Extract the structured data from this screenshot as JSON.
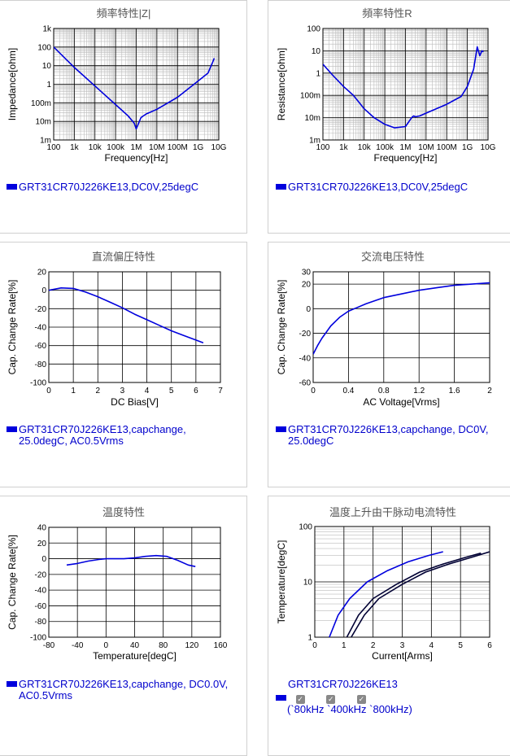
{
  "panels": {
    "imp": {
      "title": "頻率特性|Z|",
      "legend": "GRT31CR70J226KE13,DC0V,25degC"
    },
    "res": {
      "title": "頻率特性R",
      "legend": "GRT31CR70J226KE13,DC0V,25degC"
    },
    "dc": {
      "title": "直流偏圧特性",
      "legend_line1": "GRT31CR70J226KE13,capchange,",
      "legend_line2": "25.0degC, AC0.5Vrms"
    },
    "ac": {
      "title": "交流电压特性",
      "legend_line1": "GRT31CR70J226KE13,capchange, DC0V,",
      "legend_line2": "25.0degC"
    },
    "temp": {
      "title": "温度特性",
      "legend_line1": "GRT31CR70J226KE13,capchange, DC0.0V,",
      "legend_line2": "AC0.5Vrms"
    },
    "rise": {
      "title": "温度上升由干脉动电流特性",
      "legend_name": "GRT31CR70J226KE13",
      "check_mark": "✓",
      "check_labels": "(`80kHz `400kHz `800kHz)"
    }
  },
  "colors": {
    "series": "#0000dd",
    "series_dark": "#000033",
    "grid": "#000000",
    "plot_bg": "#ffffff"
  },
  "chart_data": [
    {
      "id": "imp",
      "type": "line",
      "title": "頻率特性|Z|",
      "xlabel": "Frequency[Hz]",
      "ylabel": "Impedance[ohm]",
      "xscale": "log",
      "yscale": "log",
      "xlim": [
        100,
        10000000000
      ],
      "ylim": [
        0.001,
        1000
      ],
      "xticks": [
        "100",
        "1k",
        "10k",
        "100k",
        "1M",
        "10M",
        "100M",
        "1G",
        "10G"
      ],
      "yticks": [
        "1m",
        "10m",
        "100m",
        "1",
        "10",
        "100",
        "1k"
      ],
      "series": [
        {
          "x": [
            100,
            1000,
            10000,
            100000,
            400000,
            800000,
            1000000,
            1300000,
            1700000,
            3000000,
            10000000,
            100000000,
            1000000000,
            3000000000,
            5000000000,
            6000000000
          ],
          "y": [
            100,
            8,
            0.8,
            0.08,
            0.02,
            0.008,
            0.004,
            0.008,
            0.016,
            0.025,
            0.045,
            0.2,
            1.5,
            4,
            15,
            25
          ]
        }
      ]
    },
    {
      "id": "res",
      "type": "line",
      "title": "頻率特性R",
      "xlabel": "Frequency[Hz]",
      "ylabel": "Resistance[ohm]",
      "xscale": "log",
      "yscale": "log",
      "xlim": [
        100,
        10000000000
      ],
      "ylim": [
        0.001,
        100
      ],
      "xticks": [
        "100",
        "1k",
        "10k",
        "100k",
        "1M",
        "10M",
        "100M",
        "1G",
        "10G"
      ],
      "yticks": [
        "1m",
        "10m",
        "100m",
        "1",
        "10",
        "100"
      ],
      "series": [
        {
          "x": [
            100,
            300,
            1000,
            3000,
            10000,
            30000,
            100000,
            300000,
            1000000,
            2000000,
            2500000,
            3000000,
            5000000,
            10000000,
            100000000,
            500000000,
            1000000000,
            2000000000,
            3000000000,
            4000000000,
            5000000000,
            6000000000
          ],
          "y": [
            2.5,
            0.8,
            0.25,
            0.1,
            0.025,
            0.01,
            0.005,
            0.0035,
            0.004,
            0.01,
            0.012,
            0.011,
            0.012,
            0.016,
            0.04,
            0.09,
            0.25,
            1.5,
            15,
            6,
            10,
            9
          ]
        }
      ]
    },
    {
      "id": "dc",
      "type": "line",
      "title": "直流偏圧特性",
      "xlabel": "DC Bias[V]",
      "ylabel": "Cap. Change Rate[%]",
      "xlim": [
        0,
        7
      ],
      "ylim": [
        -100,
        20
      ],
      "xticks": [
        "0",
        "1",
        "2",
        "3",
        "4",
        "5",
        "6",
        "7"
      ],
      "yticks": [
        "-100",
        "-80",
        "-60",
        "-40",
        "-20",
        "0",
        "20"
      ],
      "series": [
        {
          "x": [
            0,
            0.5,
            1,
            1.5,
            2,
            2.5,
            3,
            3.5,
            4,
            4.5,
            5,
            5.5,
            6,
            6.3
          ],
          "y": [
            0,
            2.5,
            2,
            -2,
            -7,
            -13,
            -19,
            -26,
            -32,
            -38,
            -44,
            -49,
            -54,
            -57
          ]
        }
      ]
    },
    {
      "id": "ac",
      "type": "line",
      "title": "交流电压特性",
      "xlabel": "AC Voltage[Vrms]",
      "ylabel": "Cap. Change Rate[%]",
      "xlim": [
        0,
        2
      ],
      "ylim": [
        -60,
        30
      ],
      "xticks": [
        "0",
        "0.4",
        "0.8",
        "1.2",
        "1.6",
        "2"
      ],
      "yticks": [
        "-60",
        "-40",
        "-20",
        "0",
        "20",
        "30"
      ],
      "series": [
        {
          "x": [
            0,
            0.05,
            0.1,
            0.2,
            0.3,
            0.4,
            0.5,
            0.6,
            0.8,
            1,
            1.2,
            1.4,
            1.6,
            1.8,
            2
          ],
          "y": [
            -37,
            -30,
            -24,
            -14,
            -7,
            -2,
            1,
            4,
            9,
            12,
            15,
            17,
            19,
            20,
            21
          ]
        }
      ]
    },
    {
      "id": "temp",
      "type": "line",
      "title": "温度特性",
      "xlabel": "Temperature[degC]",
      "ylabel": "Cap. Change Rate[%]",
      "xlim": [
        -80,
        160
      ],
      "ylim": [
        -100,
        40
      ],
      "xticks": [
        "-80",
        "-40",
        "0",
        "40",
        "80",
        "120",
        "160"
      ],
      "yticks": [
        "-100",
        "-80",
        "-60",
        "-40",
        "-20",
        "0",
        "20",
        "40"
      ],
      "series": [
        {
          "x": [
            -55,
            -40,
            -25,
            -10,
            0,
            25,
            40,
            55,
            70,
            85,
            100,
            115,
            125
          ],
          "y": [
            -8,
            -6,
            -3,
            -1,
            0,
            0,
            1,
            3,
            4,
            3,
            -2,
            -8,
            -10
          ]
        }
      ]
    },
    {
      "id": "rise",
      "type": "line",
      "title": "温度上升由干脉动电流特性",
      "xlabel": "Current[Arms]",
      "ylabel": "Temperature[degC]",
      "yscale": "log",
      "xlim": [
        0,
        6
      ],
      "ylim": [
        1,
        100
      ],
      "xticks": [
        "0",
        "1",
        "2",
        "3",
        "4",
        "5",
        "6"
      ],
      "yticks": [
        "1",
        "10",
        "100"
      ],
      "series": [
        {
          "name": "80kHz",
          "x": [
            0.5,
            0.8,
            1.2,
            1.8,
            2.5,
            3.2,
            3.9,
            4.4
          ],
          "y": [
            1,
            2.5,
            5,
            10,
            16,
            23,
            30,
            35
          ]
        },
        {
          "name": "400kHz",
          "x": [
            1.1,
            1.5,
            2,
            2.8,
            3.6,
            4.4,
            5.2,
            5.7
          ],
          "y": [
            1,
            2.5,
            5,
            9,
            15,
            21,
            28,
            33
          ]
        },
        {
          "name": "800kHz",
          "x": [
            1.25,
            1.7,
            2.2,
            3,
            3.8,
            4.6,
            5.4,
            6
          ],
          "y": [
            1,
            2.5,
            5,
            9,
            15,
            21,
            28,
            35
          ]
        }
      ]
    }
  ]
}
